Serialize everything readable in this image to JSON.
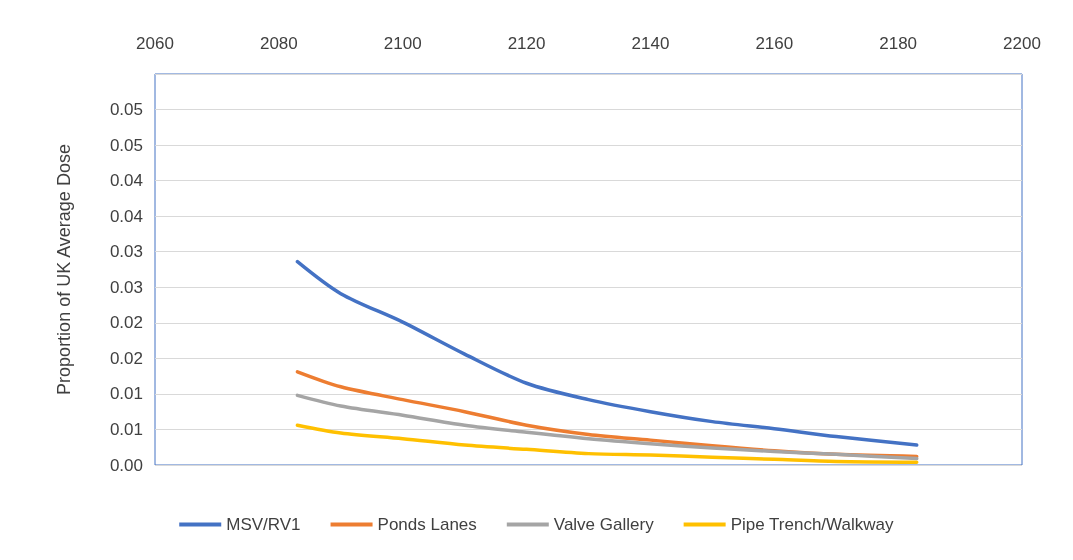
{
  "chart_data": {
    "type": "line",
    "ylabel": "Proportion of UK Average Dose",
    "xlim": [
      2060,
      2200
    ],
    "xticks": [
      2060,
      2080,
      2100,
      2120,
      2140,
      2160,
      2180,
      2200
    ],
    "ylim": [
      0,
      0.055
    ],
    "yticks": [
      {
        "value": 0,
        "label": "0.00"
      },
      {
        "value": 0.005,
        "label": "0.01"
      },
      {
        "value": 0.01,
        "label": "0.01"
      },
      {
        "value": 0.015,
        "label": "0.02"
      },
      {
        "value": 0.02,
        "label": "0.02"
      },
      {
        "value": 0.025,
        "label": "0.03"
      },
      {
        "value": 0.03,
        "label": "0.03"
      },
      {
        "value": 0.035,
        "label": "0.04"
      },
      {
        "value": 0.04,
        "label": "0.04"
      },
      {
        "value": 0.045,
        "label": "0.05"
      },
      {
        "value": 0.05,
        "label": "0.05"
      },
      {
        "value": 0.055,
        "label": null
      }
    ],
    "x": [
      2083,
      2090,
      2100,
      2110,
      2120,
      2130,
      2140,
      2150,
      2160,
      2170,
      2183
    ],
    "series": [
      {
        "name": "MSV/RV1",
        "color": "#4472c4",
        "values": [
          0.0286,
          0.0241,
          0.0201,
          0.0156,
          0.0115,
          0.0092,
          0.0075,
          0.0061,
          0.0051,
          0.004,
          0.0028
        ]
      },
      {
        "name": "Ponds Lanes",
        "color": "#ed7d31",
        "values": [
          0.0131,
          0.011,
          0.0092,
          0.0075,
          0.0056,
          0.0043,
          0.0035,
          0.0027,
          0.002,
          0.0015,
          0.0012
        ]
      },
      {
        "name": "Valve Gallery",
        "color": "#a5a5a5",
        "values": [
          0.0098,
          0.0083,
          0.007,
          0.0056,
          0.0046,
          0.0037,
          0.003,
          0.0024,
          0.0019,
          0.0015,
          0.0009
        ]
      },
      {
        "name": "Pipe Trench/Walkway",
        "color": "#ffc000",
        "values": [
          0.0056,
          0.0045,
          0.0037,
          0.0028,
          0.0022,
          0.0016,
          0.0014,
          0.0011,
          0.0008,
          0.0005,
          0.0004
        ]
      }
    ],
    "grid": "y",
    "legend": "bottom",
    "marker": "none",
    "line_style": "solid"
  }
}
